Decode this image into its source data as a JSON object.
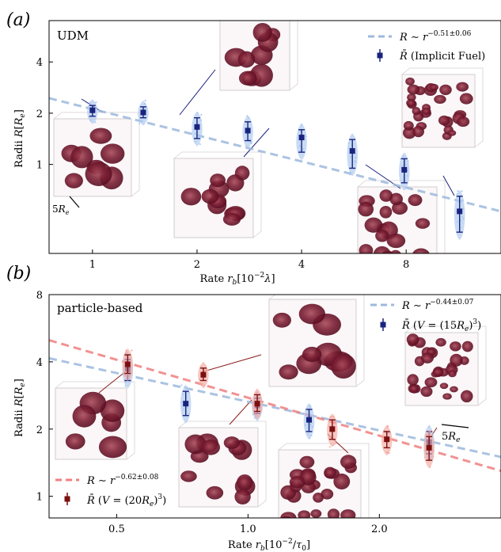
{
  "chart_data": [
    {
      "panel": "(a)",
      "title": "UDM",
      "type": "scatter",
      "xlabel": "Rate r_b[10^-2 λ]",
      "ylabel": "Radii R[R_e]",
      "xscale": "log",
      "yscale": "log",
      "xlim": [
        0.75,
        15
      ],
      "ylim": [
        0.3,
        7
      ],
      "xticks": [
        {
          "v": 1,
          "label": "1"
        },
        {
          "v": 2,
          "label": "2"
        },
        {
          "v": 4,
          "label": "4"
        },
        {
          "v": 8,
          "label": "8"
        }
      ],
      "yticks": [
        {
          "v": 1,
          "label": "1"
        },
        {
          "v": 2,
          "label": "2"
        },
        {
          "v": 4,
          "label": "4"
        }
      ],
      "legend_position": "top-right",
      "scale_bar_label": "5R_e",
      "fit": {
        "label": "R ∼ r^{-0.51±0.06}",
        "color": "#9db9dd",
        "x": [
          0.75,
          15
        ],
        "y": [
          2.45,
          0.53
        ]
      },
      "series": [
        {
          "name": "R̄ (Implicit Fuel)",
          "color": "#1a237e",
          "violin_color": "#aac8f0",
          "x": [
            1.0,
            1.4,
            2.0,
            2.8,
            4.0,
            5.6,
            7.9,
            11.4
          ],
          "y": [
            2.08,
            2.02,
            1.66,
            1.58,
            1.44,
            1.2,
            0.93,
            0.53
          ],
          "ylow": [
            1.92,
            1.88,
            1.42,
            1.38,
            1.18,
            0.95,
            0.78,
            0.4
          ],
          "yhigh": [
            2.22,
            2.18,
            1.88,
            1.78,
            1.6,
            1.4,
            1.08,
            0.65
          ]
        }
      ]
    },
    {
      "panel": "(b)",
      "title": "particle-based",
      "type": "scatter",
      "xlabel": "Rate r_b[10^-2/τ_0]",
      "ylabel": "Radii R[R_e]",
      "xscale": "log",
      "yscale": "log",
      "xlim": [
        0.35,
        3.8
      ],
      "ylim": [
        0.8,
        8
      ],
      "xticks": [
        {
          "v": 0.5,
          "label": "0.5"
        },
        {
          "v": 1.0,
          "label": "1.0"
        },
        {
          "v": 2.0,
          "label": "2.0"
        }
      ],
      "yticks": [
        {
          "v": 1,
          "label": "1"
        },
        {
          "v": 2,
          "label": "2"
        },
        {
          "v": 4,
          "label": "4"
        },
        {
          "v": 8,
          "label": "8"
        }
      ],
      "legend_position": "top-right and bottom-left",
      "scale_bar_label": "5R_e",
      "fits": [
        {
          "label": "R ∼ r^{-0.44±0.07}",
          "color": "#9db9dd",
          "x": [
            0.35,
            3.8
          ],
          "y": [
            4.15,
            1.5
          ]
        },
        {
          "label": "R ∼ r^{-0.62±0.08}",
          "color": "#f08080",
          "x": [
            0.35,
            3.8
          ],
          "y": [
            5.0,
            1.3
          ]
        }
      ],
      "series": [
        {
          "name": "R̄ (V = (15R_e)^3)",
          "color": "#1a237e",
          "violin_color": "#aac8f0",
          "x": [
            0.53,
            0.72,
            1.05,
            1.38,
            2.6
          ],
          "y": [
            3.7,
            2.6,
            2.55,
            2.2,
            1.75
          ],
          "ylow": [
            3.3,
            2.3,
            2.35,
            1.95,
            1.55
          ],
          "yhigh": [
            4.1,
            2.95,
            2.75,
            2.45,
            1.95
          ]
        },
        {
          "name": "R̄ (V = (20R_e)^3)",
          "color": "#7b1010",
          "violin_color": "#f4a9a0",
          "x": [
            0.53,
            0.79,
            1.05,
            1.56,
            2.08,
            2.6
          ],
          "y": [
            3.9,
            3.5,
            2.6,
            2.0,
            1.8,
            1.65
          ],
          "ylow": [
            3.55,
            3.3,
            2.4,
            1.8,
            1.65,
            1.45
          ],
          "yhigh": [
            4.3,
            3.75,
            2.85,
            2.2,
            1.95,
            1.85
          ]
        }
      ]
    }
  ]
}
